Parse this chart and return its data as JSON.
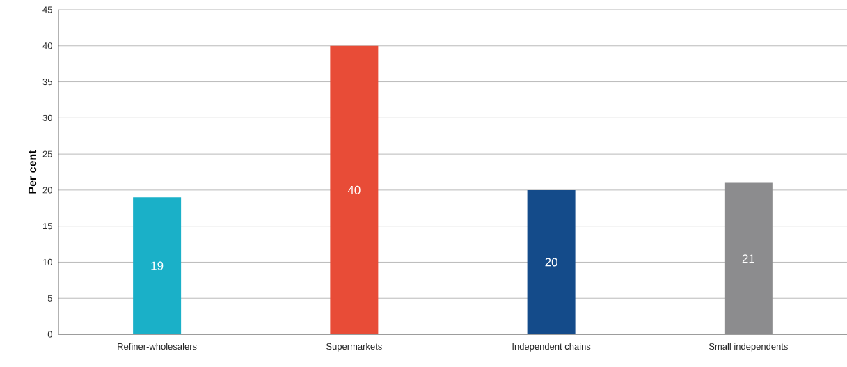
{
  "chart_data": {
    "type": "bar",
    "ylabel": "Per cent",
    "categories": [
      "Refiner-wholesalers",
      "Supermarkets",
      "Independent chains",
      "Small independents"
    ],
    "values": [
      19,
      40,
      20,
      21
    ],
    "colors": [
      "#1ab0c8",
      "#e84c37",
      "#144b8a",
      "#8c8c8e"
    ],
    "ylim": [
      0,
      45
    ],
    "yticks": [
      0,
      5,
      10,
      15,
      20,
      25,
      30,
      35,
      40,
      45
    ],
    "grid": "y",
    "data_labels": true
  }
}
